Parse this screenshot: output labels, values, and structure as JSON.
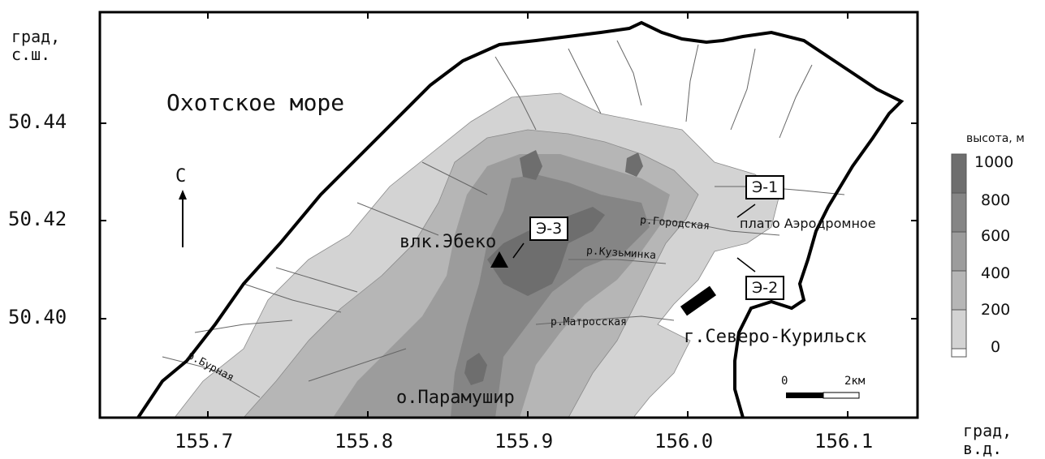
{
  "axes": {
    "y_unit": [
      "град,",
      "с.ш."
    ],
    "x_unit": [
      "град,",
      "в.д."
    ],
    "y_ticks": [
      "50.44",
      "50.42",
      "50.40"
    ],
    "x_ticks": [
      "155.7",
      "155.8",
      "155.9",
      "156.0",
      "156.1"
    ]
  },
  "labels": {
    "sea": "Охотское море",
    "north": "С",
    "volcano": "влк.Эбеко",
    "island": "о.Парамушир",
    "town": "г.Северо-Курильск",
    "plateau": "плато Аэродромное",
    "river_gorodskaya": "р.Городская",
    "river_kuzminka": "р.Кузьминка",
    "river_matrosskaya": "р.Матросская",
    "river_burnaya": "р.Бурная"
  },
  "callouts": {
    "e1": "Э-1",
    "e2": "Э-2",
    "e3": "Э-3"
  },
  "scale_bar": {
    "start": "0",
    "end": "2км"
  },
  "legend": {
    "title": "высота, м",
    "levels": [
      "1000",
      "800",
      "600",
      "400",
      "200",
      "0"
    ],
    "colors": [
      "#6e6e6e",
      "#858585",
      "#9c9c9c",
      "#b6b6b6",
      "#d3d3d3",
      "#ffffff"
    ]
  }
}
